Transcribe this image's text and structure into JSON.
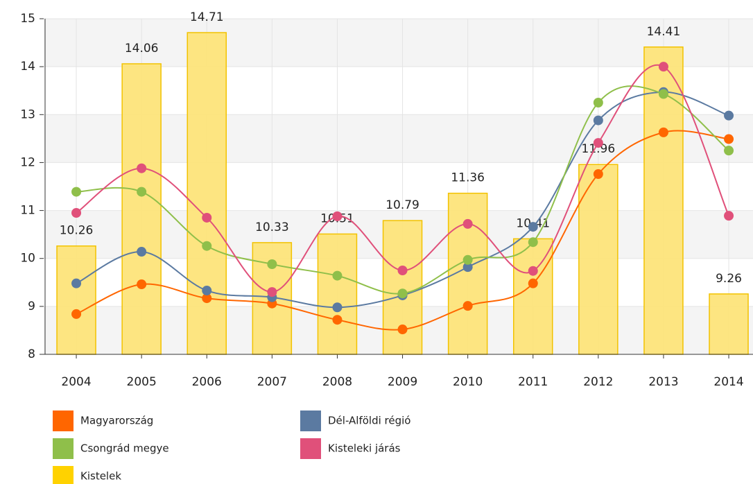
{
  "chart_data": {
    "type": "combo",
    "categories": [
      "2004",
      "2005",
      "2006",
      "2007",
      "2008",
      "2009",
      "2010",
      "2011",
      "2012",
      "2013",
      "2014"
    ],
    "ylim": [
      8,
      15
    ],
    "yticks": [
      8,
      9,
      10,
      11,
      12,
      13,
      14,
      15
    ],
    "grid": true,
    "series": [
      {
        "name": "Kistelek",
        "type": "bar",
        "color": "#fde47a",
        "values": [
          10.26,
          14.06,
          14.71,
          10.33,
          10.51,
          10.79,
          11.36,
          10.41,
          11.96,
          14.41,
          9.26
        ]
      },
      {
        "name": "Magyarország",
        "type": "line",
        "color": "#ff6600",
        "values": [
          8.84,
          9.46,
          9.17,
          9.06,
          8.72,
          8.52,
          9.01,
          9.48,
          11.76,
          12.63,
          12.49
        ]
      },
      {
        "name": "Dél-Alföldi régió",
        "type": "line",
        "color": "#5b7aa1",
        "values": [
          9.48,
          10.14,
          9.33,
          9.19,
          8.98,
          9.23,
          9.82,
          10.66,
          12.88,
          13.47,
          12.98
        ]
      },
      {
        "name": "Csongrád megye",
        "type": "line",
        "color": "#8fbf4a",
        "values": [
          11.39,
          11.39,
          10.26,
          9.88,
          9.64,
          9.27,
          9.97,
          10.34,
          13.25,
          13.43,
          12.25
        ]
      },
      {
        "name": "Kisteleki járás",
        "type": "line",
        "color": "#e0507a",
        "values": [
          10.95,
          11.88,
          10.85,
          9.3,
          10.88,
          9.75,
          10.72,
          9.74,
          12.41,
          14.0,
          10.89
        ]
      }
    ]
  }
}
